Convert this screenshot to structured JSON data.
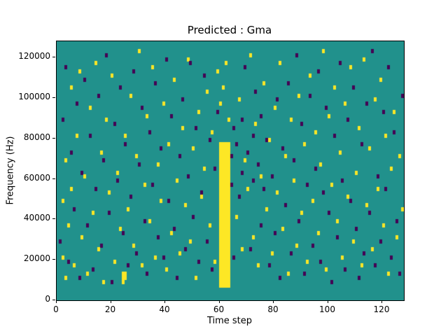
{
  "chart_data": {
    "type": "heatmap",
    "title": "Predicted : Gma",
    "xlabel": "Time step",
    "ylabel": "Frequency (Hz)",
    "x_range": [
      0,
      128
    ],
    "y_range": [
      0,
      128000
    ],
    "grid_size": {
      "cols": 128,
      "rows": 64
    },
    "x_ticks": [
      0,
      20,
      40,
      60,
      80,
      100,
      120
    ],
    "y_ticks": [
      0,
      20000,
      40000,
      60000,
      80000,
      100000,
      120000
    ],
    "legend_position": "none",
    "grid": false,
    "colors": {
      "background": "#21918c",
      "high": "#fde725",
      "low": "#440154"
    },
    "bands": [
      {
        "value": "high",
        "x0": 60,
        "x1": 63,
        "y0": 3,
        "y1": 38
      }
    ],
    "cells_high": [
      [
        2,
        10
      ],
      [
        2,
        24
      ],
      [
        3,
        5
      ],
      [
        3,
        34
      ],
      [
        4,
        18
      ],
      [
        5,
        27
      ],
      [
        5,
        52
      ],
      [
        6,
        8
      ],
      [
        7,
        40
      ],
      [
        8,
        56
      ],
      [
        9,
        15
      ],
      [
        10,
        30
      ],
      [
        11,
        6
      ],
      [
        12,
        47
      ],
      [
        13,
        21
      ],
      [
        14,
        58
      ],
      [
        15,
        12
      ],
      [
        16,
        36
      ],
      [
        17,
        4
      ],
      [
        18,
        44
      ],
      [
        19,
        26
      ],
      [
        20,
        55
      ],
      [
        21,
        9
      ],
      [
        22,
        31
      ],
      [
        23,
        17
      ],
      [
        24,
        4
      ],
      [
        24,
        5
      ],
      [
        24,
        6
      ],
      [
        25,
        5
      ],
      [
        25,
        6
      ],
      [
        25,
        40
      ],
      [
        26,
        22
      ],
      [
        27,
        50
      ],
      [
        28,
        13
      ],
      [
        29,
        35
      ],
      [
        30,
        61
      ],
      [
        31,
        8
      ],
      [
        32,
        28
      ],
      [
        33,
        45
      ],
      [
        34,
        19
      ],
      [
        35,
        57
      ],
      [
        36,
        10
      ],
      [
        37,
        33
      ],
      [
        38,
        24
      ],
      [
        39,
        48
      ],
      [
        40,
        7
      ],
      [
        41,
        38
      ],
      [
        42,
        16
      ],
      [
        43,
        54
      ],
      [
        44,
        29
      ],
      [
        45,
        11
      ],
      [
        46,
        42
      ],
      [
        47,
        23
      ],
      [
        48,
        59
      ],
      [
        49,
        14
      ],
      [
        50,
        37
      ],
      [
        51,
        5
      ],
      [
        52,
        46
      ],
      [
        53,
        25
      ],
      [
        54,
        32
      ],
      [
        55,
        51
      ],
      [
        56,
        18
      ],
      [
        57,
        41
      ],
      [
        58,
        9
      ],
      [
        59,
        56
      ],
      [
        60,
        48
      ],
      [
        61,
        52
      ],
      [
        62,
        58
      ],
      [
        63,
        44
      ],
      [
        66,
        20
      ],
      [
        67,
        49
      ],
      [
        68,
        12
      ],
      [
        69,
        34
      ],
      [
        70,
        27
      ],
      [
        71,
        60
      ],
      [
        72,
        15
      ],
      [
        73,
        43
      ],
      [
        74,
        8
      ],
      [
        75,
        30
      ],
      [
        76,
        53
      ],
      [
        77,
        22
      ],
      [
        78,
        39
      ],
      [
        79,
        11
      ],
      [
        80,
        47
      ],
      [
        81,
        26
      ],
      [
        82,
        58
      ],
      [
        83,
        17
      ],
      [
        84,
        35
      ],
      [
        85,
        6
      ],
      [
        86,
        44
      ],
      [
        87,
        29
      ],
      [
        88,
        13
      ],
      [
        89,
        50
      ],
      [
        90,
        21
      ],
      [
        91,
        38
      ],
      [
        92,
        9
      ],
      [
        93,
        55
      ],
      [
        94,
        24
      ],
      [
        95,
        41
      ],
      [
        96,
        16
      ],
      [
        97,
        33
      ],
      [
        98,
        61
      ],
      [
        99,
        7
      ],
      [
        100,
        45
      ],
      [
        101,
        28
      ],
      [
        102,
        52
      ],
      [
        103,
        19
      ],
      [
        104,
        36
      ],
      [
        105,
        10
      ],
      [
        106,
        48
      ],
      [
        107,
        25
      ],
      [
        108,
        57
      ],
      [
        109,
        14
      ],
      [
        110,
        31
      ],
      [
        111,
        42
      ],
      [
        112,
        8
      ],
      [
        113,
        59
      ],
      [
        114,
        23
      ],
      [
        115,
        37
      ],
      [
        116,
        12
      ],
      [
        117,
        49
      ],
      [
        118,
        27
      ],
      [
        119,
        54
      ],
      [
        120,
        18
      ],
      [
        121,
        40
      ],
      [
        122,
        6
      ],
      [
        123,
        32
      ],
      [
        124,
        46
      ],
      [
        125,
        15
      ],
      [
        126,
        35
      ],
      [
        127,
        22
      ]
    ],
    "cells_low": [
      [
        1,
        14
      ],
      [
        2,
        44
      ],
      [
        3,
        57
      ],
      [
        4,
        9
      ],
      [
        5,
        36
      ],
      [
        6,
        22
      ],
      [
        7,
        48
      ],
      [
        8,
        5
      ],
      [
        9,
        31
      ],
      [
        10,
        54
      ],
      [
        11,
        18
      ],
      [
        12,
        40
      ],
      [
        13,
        7
      ],
      [
        14,
        27
      ],
      [
        15,
        50
      ],
      [
        16,
        13
      ],
      [
        17,
        34
      ],
      [
        18,
        60
      ],
      [
        19,
        21
      ],
      [
        20,
        4
      ],
      [
        21,
        43
      ],
      [
        22,
        29
      ],
      [
        23,
        52
      ],
      [
        24,
        16
      ],
      [
        25,
        38
      ],
      [
        26,
        8
      ],
      [
        27,
        25
      ],
      [
        28,
        56
      ],
      [
        29,
        11
      ],
      [
        30,
        33
      ],
      [
        31,
        47
      ],
      [
        32,
        19
      ],
      [
        33,
        6
      ],
      [
        34,
        41
      ],
      [
        35,
        28
      ],
      [
        36,
        53
      ],
      [
        37,
        15
      ],
      [
        38,
        37
      ],
      [
        39,
        10
      ],
      [
        40,
        59
      ],
      [
        41,
        24
      ],
      [
        42,
        45
      ],
      [
        43,
        17
      ],
      [
        44,
        5
      ],
      [
        45,
        35
      ],
      [
        46,
        49
      ],
      [
        47,
        12
      ],
      [
        48,
        30
      ],
      [
        49,
        58
      ],
      [
        50,
        20
      ],
      [
        51,
        42
      ],
      [
        52,
        9
      ],
      [
        53,
        26
      ],
      [
        54,
        55
      ],
      [
        55,
        14
      ],
      [
        56,
        39
      ],
      [
        57,
        7
      ],
      [
        58,
        32
      ],
      [
        59,
        46
      ],
      [
        64,
        28
      ],
      [
        64,
        35
      ],
      [
        65,
        10
      ],
      [
        65,
        42
      ],
      [
        66,
        38
      ],
      [
        67,
        25
      ],
      [
        68,
        44
      ],
      [
        68,
        31
      ],
      [
        69,
        57
      ],
      [
        70,
        36
      ],
      [
        71,
        12
      ],
      [
        72,
        40
      ],
      [
        72,
        29
      ],
      [
        73,
        51
      ],
      [
        74,
        33
      ],
      [
        75,
        18
      ],
      [
        75,
        45
      ],
      [
        76,
        27
      ],
      [
        77,
        39
      ],
      [
        78,
        8
      ],
      [
        79,
        30
      ],
      [
        80,
        16
      ],
      [
        81,
        49
      ],
      [
        82,
        5
      ],
      [
        83,
        37
      ],
      [
        84,
        23
      ],
      [
        85,
        53
      ],
      [
        86,
        11
      ],
      [
        87,
        34
      ],
      [
        88,
        60
      ],
      [
        89,
        19
      ],
      [
        90,
        43
      ],
      [
        91,
        6
      ],
      [
        92,
        28
      ],
      [
        93,
        50
      ],
      [
        94,
        13
      ],
      [
        95,
        32
      ],
      [
        96,
        56
      ],
      [
        97,
        9
      ],
      [
        98,
        26
      ],
      [
        99,
        47
      ],
      [
        100,
        21
      ],
      [
        101,
        4
      ],
      [
        102,
        40
      ],
      [
        103,
        15
      ],
      [
        104,
        58
      ],
      [
        105,
        29
      ],
      [
        106,
        7
      ],
      [
        107,
        44
      ],
      [
        108,
        24
      ],
      [
        109,
        52
      ],
      [
        110,
        17
      ],
      [
        111,
        5
      ],
      [
        112,
        38
      ],
      [
        113,
        11
      ],
      [
        114,
        48
      ],
      [
        115,
        21
      ],
      [
        116,
        61
      ],
      [
        117,
        8
      ],
      [
        118,
        30
      ],
      [
        119,
        14
      ],
      [
        120,
        46
      ],
      [
        121,
        27
      ],
      [
        122,
        57
      ],
      [
        123,
        10
      ],
      [
        124,
        41
      ],
      [
        125,
        19
      ],
      [
        126,
        6
      ],
      [
        127,
        50
      ]
    ]
  }
}
